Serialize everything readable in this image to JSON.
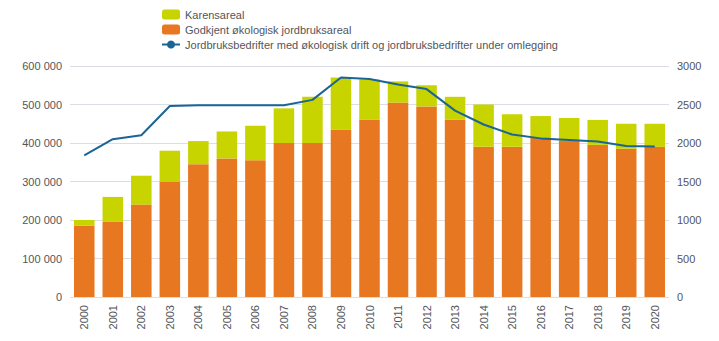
{
  "chart_data": {
    "type": "bar",
    "categories": [
      "2000",
      "2001",
      "2002",
      "2003",
      "2004",
      "2005",
      "2006",
      "2007",
      "2008",
      "2009",
      "2010",
      "2011",
      "2012",
      "2013",
      "2014",
      "2015",
      "2016",
      "2017",
      "2018",
      "2019",
      "2020"
    ],
    "series": [
      {
        "name": "Godkjent økologisk jordbruksareal",
        "type": "bar",
        "color": "#E87722",
        "values": [
          185000,
          195000,
          240000,
          300000,
          345000,
          360000,
          355000,
          400000,
          400000,
          435000,
          460000,
          505000,
          495000,
          460000,
          390000,
          390000,
          415000,
          405000,
          395000,
          385000,
          390000
        ]
      },
      {
        "name": "Karensareal",
        "type": "bar",
        "color": "#C8D400",
        "values": [
          15000,
          65000,
          75000,
          80000,
          60000,
          70000,
          90000,
          90000,
          120000,
          135000,
          105000,
          55000,
          55000,
          60000,
          110000,
          85000,
          55000,
          60000,
          65000,
          65000,
          60000
        ]
      },
      {
        "name": "Jordbruksbedrifter med økologisk drift og jordbruksbedrifter under omlegging",
        "type": "line",
        "color": "#1A6496",
        "axis": "y2",
        "values": [
          1840,
          2050,
          2100,
          2480,
          2490,
          2490,
          2490,
          2490,
          2560,
          2850,
          2830,
          2760,
          2700,
          2420,
          2240,
          2110,
          2060,
          2040,
          2020,
          1960,
          1955
        ]
      }
    ],
    "stacked": true,
    "ylim": [
      0,
      600000
    ],
    "yticks": [
      0,
      {
        "value": 100000,
        "label": "100 000"
      },
      {
        "value": 200000,
        "label": "200 000"
      },
      {
        "value": 300000,
        "label": "300 000"
      },
      {
        "value": 400000,
        "label": "400 000"
      },
      {
        "value": 500000,
        "label": "500 000"
      },
      {
        "value": 600000,
        "label": "600 000"
      }
    ],
    "y2lim": [
      0,
      3000
    ],
    "y2ticks": [
      0,
      500,
      1000,
      1500,
      2000,
      2500,
      3000
    ],
    "grid": true,
    "legend": "top"
  }
}
